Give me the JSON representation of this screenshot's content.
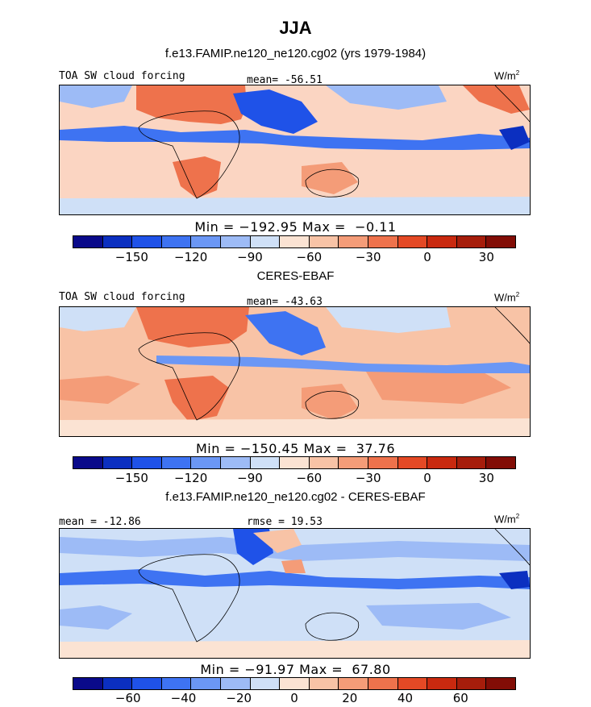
{
  "figure": {
    "title": "JJA"
  },
  "colors": {
    "cbar": [
      "#0a0a8a",
      "#0b2fc0",
      "#1f52e8",
      "#3e73f2",
      "#6b97f5",
      "#9dbbf6",
      "#cfe0f7",
      "#fbe3d3",
      "#f8c3a6",
      "#f49c78",
      "#ee724c",
      "#e44925",
      "#c9290f",
      "#a61d0b",
      "#820d06"
    ],
    "continent_line": "#000000"
  },
  "chart_data": [
    {
      "type": "heatmap",
      "title": "f.e13.FAMIP.ne120_ne120.cg02 (yrs 1979-1984)",
      "field": "TOA SW cloud forcing",
      "mean_label": "mean= -56.51",
      "units": "W/m",
      "units_power": "2",
      "min_max": "Min = −192.95 Max =  −0.11",
      "colorbar_ticks": [
        "−150",
        "−120",
        "−90",
        "−60",
        "−30",
        "0",
        "30"
      ],
      "colorbar_range": [
        -180,
        45
      ],
      "min": -192.95,
      "max": -0.11,
      "mean": -56.51
    },
    {
      "type": "heatmap",
      "title": "CERES-EBAF",
      "field": "TOA SW cloud forcing",
      "mean_label": "mean= -43.63",
      "units": "W/m",
      "units_power": "2",
      "min_max": "Min = −150.45 Max =  37.76",
      "colorbar_ticks": [
        "−150",
        "−120",
        "−90",
        "−60",
        "−30",
        "0",
        "30"
      ],
      "colorbar_range": [
        -180,
        45
      ],
      "min": -150.45,
      "max": 37.76,
      "mean": -43.63
    },
    {
      "type": "heatmap",
      "title": "f.e13.FAMIP.ne120_ne120.cg02 - CERES-EBAF",
      "mean_label": "mean = -12.86",
      "rmse_label": "rmse =  19.53",
      "units": "W/m",
      "units_power": "2",
      "min_max": "Min = −91.97 Max =  67.80",
      "colorbar_ticks": [
        "−60",
        "−40",
        "−20",
        "0",
        "20",
        "40",
        "60"
      ],
      "colorbar_range": [
        -80,
        80
      ],
      "min": -91.97,
      "max": 67.8,
      "mean": -12.86,
      "rmse": 19.53
    }
  ]
}
